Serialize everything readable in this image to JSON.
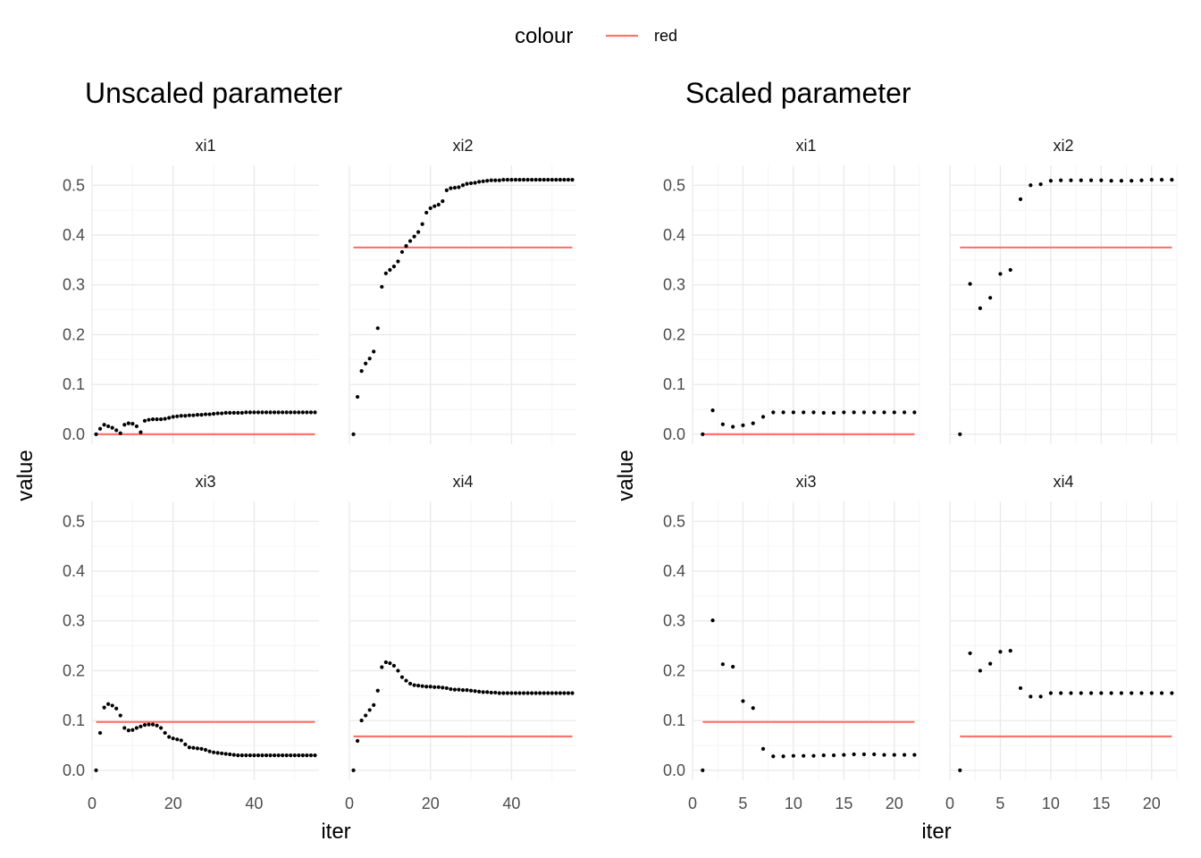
{
  "legend": {
    "title": "colour",
    "items": [
      {
        "label": "red",
        "color": "#F8766D"
      }
    ]
  },
  "colors": {
    "reference_line": "#F8766D",
    "points": "#000000",
    "grid": "#ebebeb"
  },
  "chart_data": [
    {
      "type": "scatter",
      "title": "Unscaled parameter",
      "xlabel": "iter",
      "ylabel": "value",
      "xlim": [
        0,
        56
      ],
      "ylim": [
        -0.02,
        0.54
      ],
      "xticks": [
        0,
        20,
        40
      ],
      "yticks": [
        0.0,
        0.1,
        0.2,
        0.3,
        0.4,
        0.5
      ],
      "grid": true,
      "facets": [
        {
          "label": "xi1",
          "reference_value": 0.0,
          "reference_x": [
            1,
            55
          ],
          "x_start": 1,
          "values": [
            0.0,
            0.011,
            0.019,
            0.016,
            0.013,
            0.008,
            0.002,
            0.019,
            0.022,
            0.021,
            0.016,
            0.004,
            0.027,
            0.029,
            0.03,
            0.03,
            0.03,
            0.031,
            0.033,
            0.035,
            0.036,
            0.037,
            0.037,
            0.038,
            0.038,
            0.039,
            0.039,
            0.04,
            0.04,
            0.041,
            0.042,
            0.042,
            0.043,
            0.043,
            0.043,
            0.043,
            0.043,
            0.044,
            0.044,
            0.044,
            0.044,
            0.044,
            0.044,
            0.044,
            0.044,
            0.044,
            0.044,
            0.044,
            0.044,
            0.044,
            0.044,
            0.044,
            0.044,
            0.044,
            0.044
          ]
        },
        {
          "label": "xi2",
          "reference_value": 0.375,
          "reference_x": [
            1,
            55
          ],
          "x_start": 1,
          "values": [
            0.0,
            0.075,
            0.127,
            0.142,
            0.152,
            0.166,
            0.213,
            0.296,
            0.323,
            0.33,
            0.337,
            0.347,
            0.366,
            0.378,
            0.388,
            0.397,
            0.406,
            0.422,
            0.445,
            0.454,
            0.458,
            0.461,
            0.468,
            0.49,
            0.494,
            0.495,
            0.496,
            0.5,
            0.503,
            0.504,
            0.505,
            0.507,
            0.508,
            0.509,
            0.51,
            0.51,
            0.51,
            0.511,
            0.511,
            0.511,
            0.511,
            0.511,
            0.511,
            0.511,
            0.511,
            0.511,
            0.511,
            0.511,
            0.511,
            0.511,
            0.511,
            0.511,
            0.511,
            0.511,
            0.511
          ]
        },
        {
          "label": "xi3",
          "reference_value": 0.097,
          "reference_x": [
            1,
            55
          ],
          "x_start": 1,
          "values": [
            0.0,
            0.075,
            0.126,
            0.133,
            0.13,
            0.124,
            0.11,
            0.085,
            0.08,
            0.081,
            0.085,
            0.088,
            0.091,
            0.092,
            0.092,
            0.09,
            0.085,
            0.075,
            0.067,
            0.064,
            0.062,
            0.06,
            0.052,
            0.046,
            0.045,
            0.044,
            0.043,
            0.041,
            0.038,
            0.036,
            0.035,
            0.034,
            0.033,
            0.032,
            0.031,
            0.03,
            0.03,
            0.03,
            0.03,
            0.03,
            0.03,
            0.03,
            0.03,
            0.03,
            0.03,
            0.03,
            0.03,
            0.03,
            0.03,
            0.03,
            0.03,
            0.03,
            0.03,
            0.03,
            0.03
          ]
        },
        {
          "label": "xi4",
          "reference_value": 0.068,
          "reference_x": [
            1,
            55
          ],
          "x_start": 1,
          "values": [
            0.0,
            0.059,
            0.1,
            0.11,
            0.121,
            0.131,
            0.16,
            0.207,
            0.217,
            0.215,
            0.21,
            0.2,
            0.187,
            0.18,
            0.174,
            0.171,
            0.17,
            0.169,
            0.168,
            0.168,
            0.167,
            0.167,
            0.166,
            0.165,
            0.163,
            0.162,
            0.162,
            0.161,
            0.161,
            0.16,
            0.159,
            0.158,
            0.157,
            0.157,
            0.156,
            0.156,
            0.155,
            0.155,
            0.155,
            0.155,
            0.155,
            0.155,
            0.155,
            0.155,
            0.155,
            0.155,
            0.155,
            0.155,
            0.155,
            0.155,
            0.155,
            0.155,
            0.155,
            0.155,
            0.155
          ]
        }
      ]
    },
    {
      "type": "scatter",
      "title": "Scaled parameter",
      "xlabel": "iter",
      "ylabel": "value",
      "xlim": [
        0,
        22.5
      ],
      "ylim": [
        -0.02,
        0.54
      ],
      "xticks": [
        0,
        5,
        10,
        15,
        20
      ],
      "yticks": [
        0.0,
        0.1,
        0.2,
        0.3,
        0.4,
        0.5
      ],
      "grid": true,
      "facets": [
        {
          "label": "xi1",
          "reference_value": 0.0,
          "reference_x": [
            1,
            22
          ],
          "x_start": 1,
          "values": [
            0.0,
            0.048,
            0.02,
            0.015,
            0.018,
            0.022,
            0.035,
            0.044,
            0.044,
            0.044,
            0.044,
            0.044,
            0.043,
            0.043,
            0.044,
            0.044,
            0.044,
            0.044,
            0.044,
            0.044,
            0.044,
            0.044
          ]
        },
        {
          "label": "xi2",
          "reference_value": 0.375,
          "reference_x": [
            1,
            22
          ],
          "x_start": 1,
          "values": [
            0.0,
            0.302,
            0.253,
            0.274,
            0.322,
            0.33,
            0.472,
            0.5,
            0.502,
            0.509,
            0.51,
            0.51,
            0.51,
            0.51,
            0.51,
            0.509,
            0.509,
            0.509,
            0.51,
            0.511,
            0.511,
            0.511
          ]
        },
        {
          "label": "xi3",
          "reference_value": 0.097,
          "reference_x": [
            1,
            22
          ],
          "x_start": 1,
          "values": [
            0.0,
            0.301,
            0.213,
            0.208,
            0.139,
            0.125,
            0.043,
            0.028,
            0.028,
            0.029,
            0.029,
            0.029,
            0.03,
            0.03,
            0.031,
            0.032,
            0.032,
            0.032,
            0.031,
            0.031,
            0.031,
            0.031
          ]
        },
        {
          "label": "xi4",
          "reference_value": 0.068,
          "reference_x": [
            1,
            22
          ],
          "x_start": 1,
          "values": [
            0.0,
            0.235,
            0.2,
            0.214,
            0.238,
            0.24,
            0.165,
            0.148,
            0.148,
            0.155,
            0.155,
            0.155,
            0.155,
            0.155,
            0.155,
            0.155,
            0.155,
            0.155,
            0.155,
            0.155,
            0.155,
            0.155
          ]
        }
      ]
    }
  ]
}
